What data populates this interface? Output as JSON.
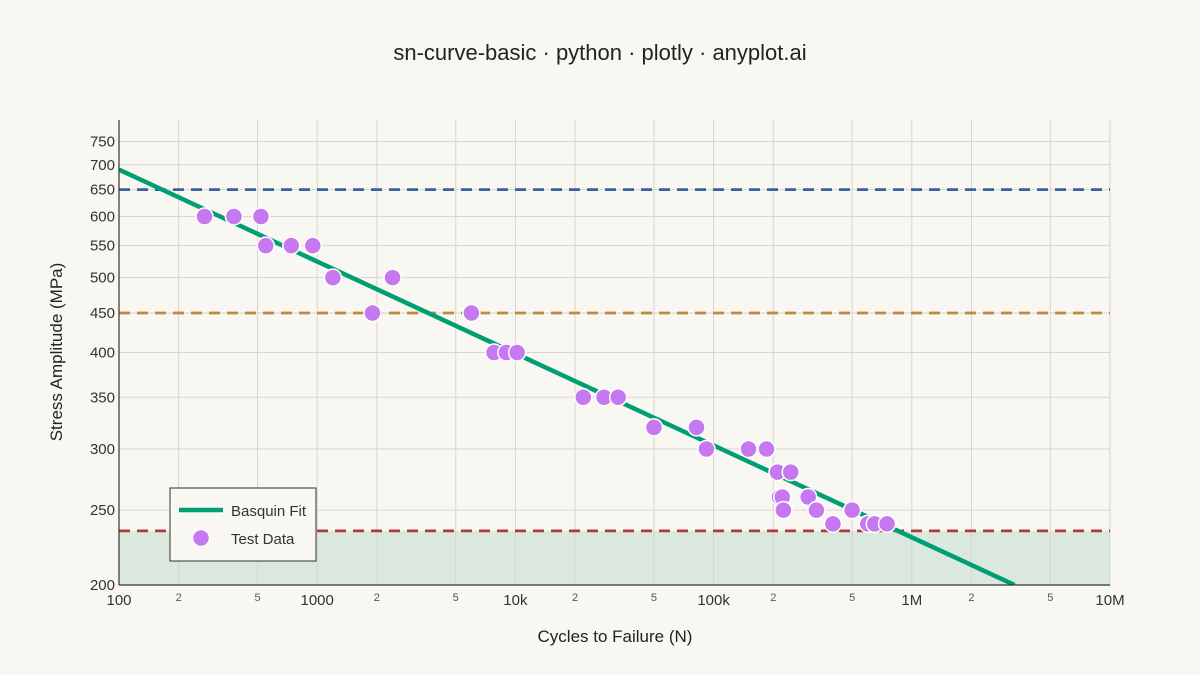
{
  "chart_data": {
    "type": "scatter",
    "title": "sn-curve-basic · python · plotly · anyplot.ai",
    "xlabel": "Cycles to Failure (N)",
    "ylabel": "Stress Amplitude (MPa)",
    "x_scale": "log",
    "y_scale": "log",
    "xlim": [
      100,
      10000000
    ],
    "ylim": [
      200,
      800
    ],
    "x_major_ticks": [
      {
        "value": 100,
        "label": "100"
      },
      {
        "value": 1000,
        "label": "1000"
      },
      {
        "value": 10000,
        "label": "10k"
      },
      {
        "value": 100000,
        "label": "100k"
      },
      {
        "value": 1000000,
        "label": "1M"
      },
      {
        "value": 10000000,
        "label": "10M"
      }
    ],
    "x_minor_ticks": [
      {
        "value": 200,
        "label": "2"
      },
      {
        "value": 500,
        "label": "5"
      },
      {
        "value": 2000,
        "label": "2"
      },
      {
        "value": 5000,
        "label": "5"
      },
      {
        "value": 20000,
        "label": "2"
      },
      {
        "value": 50000,
        "label": "5"
      },
      {
        "value": 200000,
        "label": "2"
      },
      {
        "value": 500000,
        "label": "5"
      },
      {
        "value": 2000000,
        "label": "2"
      },
      {
        "value": 5000000,
        "label": "5"
      }
    ],
    "y_ticks": [
      {
        "value": 200,
        "label": "200"
      },
      {
        "value": 250,
        "label": "250"
      },
      {
        "value": 300,
        "label": "300"
      },
      {
        "value": 350,
        "label": "350"
      },
      {
        "value": 400,
        "label": "400"
      },
      {
        "value": 450,
        "label": "450"
      },
      {
        "value": 500,
        "label": "500"
      },
      {
        "value": 550,
        "label": "550"
      },
      {
        "value": 600,
        "label": "600"
      },
      {
        "value": 650,
        "label": "650"
      },
      {
        "value": 700,
        "label": "700"
      },
      {
        "value": 750,
        "label": "750"
      }
    ],
    "grid": true,
    "series": [
      {
        "name": "Basquin Fit",
        "kind": "line",
        "color": "#009e73",
        "x": [
          100,
          3300000
        ],
        "y": [
          690,
          200
        ]
      },
      {
        "name": "Test Data",
        "kind": "scatter",
        "color": "#c678f0",
        "x": [
          270,
          380,
          520,
          550,
          740,
          950,
          1200,
          1900,
          2400,
          6000,
          7800,
          9000,
          10200,
          22000,
          28000,
          33000,
          50000,
          82000,
          92000,
          150000,
          185000,
          210000,
          215000,
          222000,
          225000,
          245000,
          300000,
          330000,
          400000,
          500000,
          600000,
          650000,
          750000
        ],
        "y": [
          600,
          600,
          600,
          550,
          550,
          550,
          500,
          450,
          500,
          450,
          400,
          400,
          400,
          350,
          350,
          350,
          320,
          320,
          300,
          300,
          300,
          280,
          260,
          260,
          250,
          280,
          260,
          250,
          240,
          250,
          240,
          240,
          240
        ]
      }
    ],
    "reference_lines": [
      {
        "y": 650,
        "color": "#3b5fa0"
      },
      {
        "y": 450,
        "color": "#c08a3a"
      },
      {
        "y": 235,
        "color": "#b03a3a"
      }
    ],
    "shaded_region": {
      "y_from": 200,
      "y_to": 235,
      "color": "#cfe3d6"
    },
    "legend": {
      "placement": "bottom-left",
      "entries": [
        "Basquin Fit",
        "Test Data"
      ]
    }
  }
}
